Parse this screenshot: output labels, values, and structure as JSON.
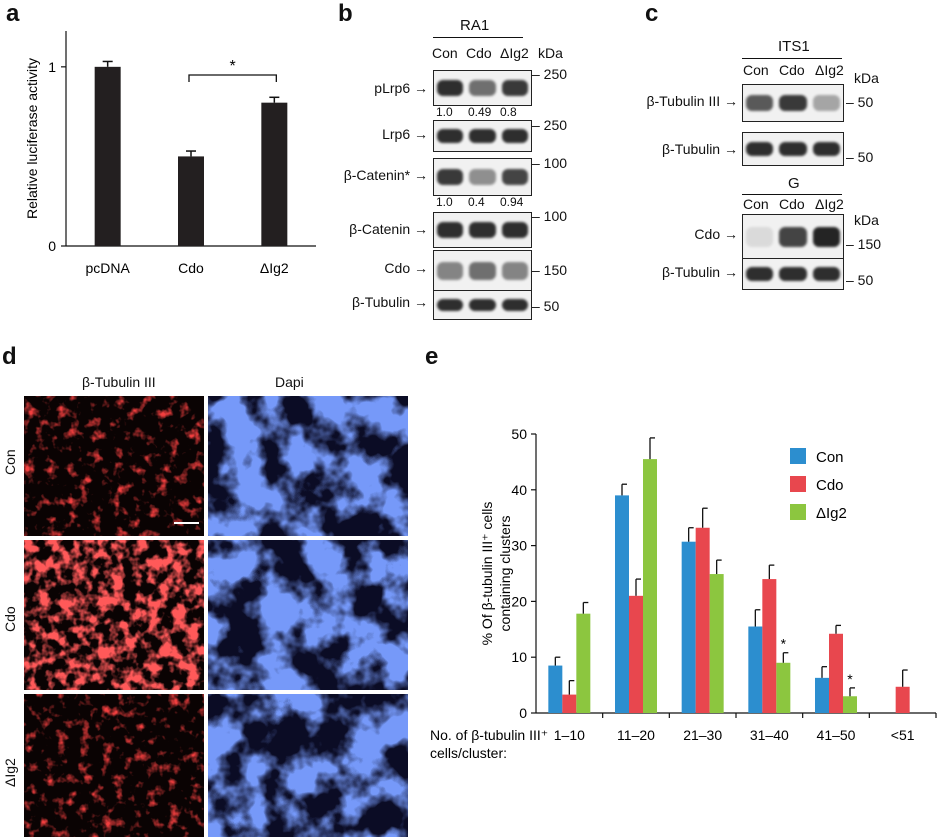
{
  "panels": {
    "a": "a",
    "b": "b",
    "c": "c",
    "d": "d",
    "e": "e"
  },
  "panel_a": {
    "ylabel": "Relative luciferase activity",
    "ytick_labels": [
      "0",
      "1"
    ],
    "significance": "*",
    "chart_data": {
      "type": "bar",
      "categories": [
        "pcDNA",
        "Cdo",
        "ΔIg2"
      ],
      "values": [
        1.0,
        0.5,
        0.8
      ],
      "errors": [
        0.03,
        0.03,
        0.03
      ],
      "ylim": [
        0,
        1.2
      ],
      "ylabel": "Relative luciferase activity",
      "colors": [
        "#231f20"
      ]
    }
  },
  "panel_b": {
    "group": "RA1",
    "lanes": [
      "Con",
      "Cdo",
      "ΔIg2"
    ],
    "kda": "kDa",
    "rows": [
      {
        "label": "pLrp6",
        "marker": "250",
        "quant": [
          "1.0",
          "0.49",
          "0.8"
        ]
      },
      {
        "label": "Lrp6",
        "marker": "250"
      },
      {
        "label": "β-Catenin*",
        "marker": "100",
        "quant": [
          "1.0",
          "0.4",
          "0.94"
        ]
      },
      {
        "label": "β-Catenin",
        "marker": "100"
      },
      {
        "label": "Cdo",
        "marker": "150"
      },
      {
        "label": "β-Tubulin",
        "marker": "50"
      }
    ],
    "intensities": [
      [
        0.9,
        0.6,
        0.85
      ],
      [
        0.9,
        0.9,
        0.9
      ],
      [
        0.85,
        0.45,
        0.8
      ],
      [
        0.9,
        0.9,
        0.9
      ],
      [
        0.5,
        0.6,
        0.5
      ],
      [
        0.9,
        0.9,
        0.9
      ]
    ]
  },
  "panel_c": {
    "group_top": "ITS1",
    "group_bottom": "G",
    "lanes": [
      "Con",
      "Cdo",
      "ΔIg2"
    ],
    "kda": "kDa",
    "rows_top": [
      {
        "label": "β-Tubulin III",
        "marker": "50"
      },
      {
        "label": "β-Tubulin",
        "marker": "50"
      }
    ],
    "rows_bottom": [
      {
        "label": "Cdo",
        "marker": "150"
      },
      {
        "label": "β-Tubulin",
        "marker": "50"
      }
    ],
    "intensities_top": [
      [
        0.7,
        0.85,
        0.35
      ],
      [
        0.9,
        0.9,
        0.9
      ]
    ],
    "intensities_bottom": [
      [
        0.1,
        0.8,
        0.95
      ],
      [
        0.9,
        0.9,
        0.9
      ]
    ]
  },
  "panel_d": {
    "columns": [
      "β-Tubulin III",
      "Dapi"
    ],
    "rows": [
      "Con",
      "Cdo",
      "ΔIg2"
    ]
  },
  "panel_e": {
    "ylabel_line1": "% Of β-tubulin III⁺ cells",
    "ylabel_line2": "containing clusters",
    "xlabel_line1": "No. of β-tubulin III⁺",
    "xlabel_line2": "cells/cluster:",
    "ytick_labels": [
      "0",
      "10",
      "20",
      "30",
      "40",
      "50"
    ],
    "star": "*",
    "chart_data": {
      "type": "bar",
      "categories": [
        "1–10",
        "11–20",
        "21–30",
        "31–40",
        "41–50",
        "<51"
      ],
      "series": [
        {
          "name": "Con",
          "color": "#2c8ecf",
          "values": [
            8.5,
            39,
            30.7,
            15.5,
            6.3,
            0
          ],
          "errors": [
            1.5,
            2,
            2.5,
            3,
            2,
            0
          ]
        },
        {
          "name": "Cdo",
          "color": "#e8474e",
          "values": [
            3.3,
            21,
            33.2,
            24,
            14.2,
            4.7
          ],
          "errors": [
            2.5,
            3,
            3.5,
            2.5,
            1.5,
            3
          ]
        },
        {
          "name": "ΔIg2",
          "color": "#8cc63f",
          "values": [
            17.8,
            45.5,
            24.9,
            9,
            3,
            0
          ],
          "errors": [
            2,
            3.8,
            2.5,
            1.8,
            1.5,
            0
          ]
        }
      ],
      "stars": [
        [
          3,
          2
        ],
        [
          4,
          2
        ]
      ],
      "ylim": [
        0,
        50
      ],
      "legend": "top-right"
    }
  }
}
